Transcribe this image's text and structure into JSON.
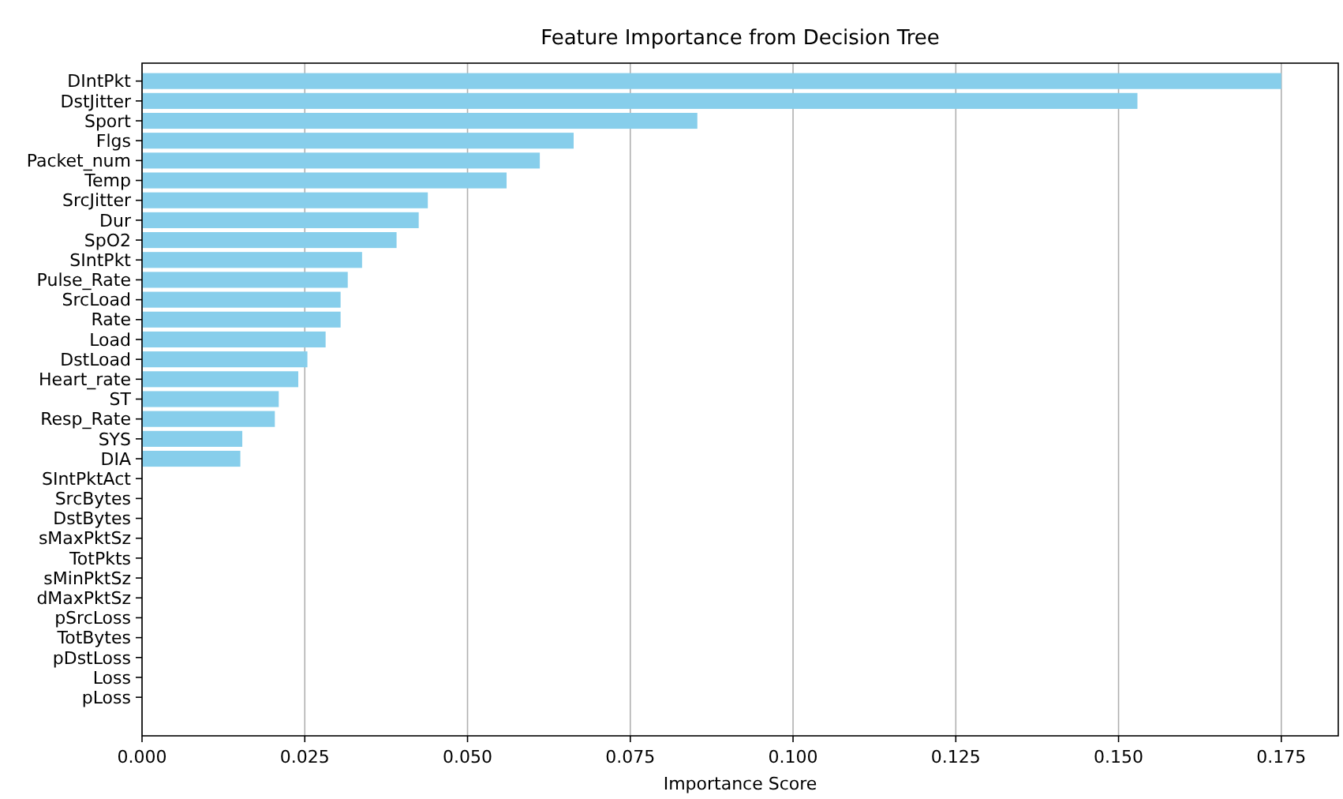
{
  "chart_data": {
    "type": "bar",
    "orientation": "horizontal",
    "title": "Feature Importance from Decision Tree",
    "xlabel": "Importance Score",
    "categories": [
      "DIntPkt",
      "DstJitter",
      "Sport",
      "Flgs",
      "Packet_num",
      "Temp",
      "SrcJitter",
      "Dur",
      "SpO2",
      "SIntPkt",
      "Pulse_Rate",
      "SrcLoad",
      "Rate",
      "Load",
      "DstLoad",
      "Heart_rate",
      "ST",
      "Resp_Rate",
      "SYS",
      "DIA",
      "SIntPktAct",
      "SrcBytes",
      "DstBytes",
      "sMaxPktSz",
      "TotPkts",
      "sMinPktSz",
      "dMaxPktSz",
      "pSrcLoss",
      "TotBytes",
      "pDstLoss",
      "Loss",
      "pLoss"
    ],
    "values": [
      0.175,
      0.1529,
      0.0853,
      0.0663,
      0.0611,
      0.056,
      0.0439,
      0.0425,
      0.0391,
      0.0338,
      0.0316,
      0.0305,
      0.0305,
      0.0282,
      0.0254,
      0.024,
      0.021,
      0.0204,
      0.0154,
      0.0151,
      0,
      0,
      0,
      0,
      0,
      0,
      0,
      0,
      0,
      0,
      0,
      0
    ],
    "color": "#87ceeb",
    "xlim": [
      0,
      0.18375
    ],
    "xticks": [
      {
        "value": 0,
        "label": "0.000"
      },
      {
        "value": 0.025,
        "label": "0.025"
      },
      {
        "value": 0.05,
        "label": "0.050"
      },
      {
        "value": 0.075,
        "label": "0.075"
      },
      {
        "value": 0.1,
        "label": "0.100"
      },
      {
        "value": 0.125,
        "label": "0.125"
      },
      {
        "value": 0.15,
        "label": "0.150"
      },
      {
        "value": 0.175,
        "label": "0.175"
      }
    ],
    "grid": "x"
  }
}
